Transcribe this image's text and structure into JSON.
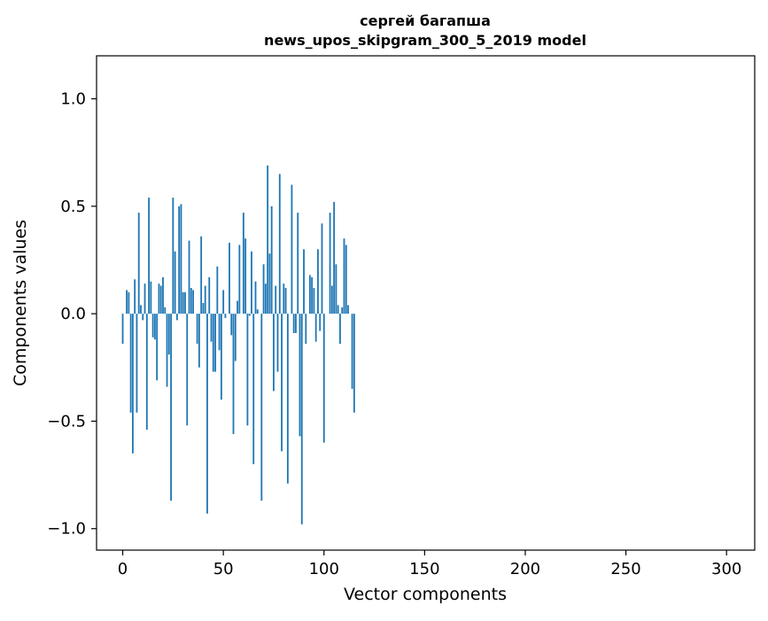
{
  "chart_data": {
    "type": "bar",
    "title_line1": "сергей багапша",
    "title_line2": "news_upos_skipgram_300_5_2019 model",
    "xlabel": "Vector components",
    "ylabel": "Components values",
    "xlim": [
      -13,
      314
    ],
    "ylim": [
      -1.1,
      1.2
    ],
    "xticks": [
      0,
      50,
      100,
      150,
      200,
      250,
      300
    ],
    "yticks": [
      -1.0,
      -0.5,
      0.0,
      0.5,
      1.0
    ],
    "ytick_labels": [
      "−1.0",
      "−0.5",
      "0.0",
      "0.5",
      "1.0"
    ],
    "grid": false,
    "bar_color": "#1f77b4",
    "values": [
      -0.14,
      0.0,
      0.11,
      0.1,
      -0.46,
      -0.65,
      0.16,
      -0.46,
      0.47,
      0.04,
      -0.03,
      0.14,
      -0.54,
      0.54,
      0.15,
      -0.11,
      -0.12,
      -0.31,
      0.14,
      0.13,
      0.17,
      0.03,
      -0.34,
      -0.19,
      -0.87,
      0.54,
      0.29,
      -0.03,
      0.5,
      0.51,
      0.1,
      0.1,
      -0.52,
      0.34,
      0.12,
      0.11,
      0.0,
      -0.14,
      -0.25,
      0.36,
      0.05,
      0.13,
      -0.93,
      0.17,
      -0.13,
      -0.27,
      -0.27,
      0.22,
      -0.17,
      -0.4,
      0.11,
      -0.02,
      0.0,
      0.33,
      -0.1,
      -0.56,
      -0.22,
      0.06,
      0.32,
      0.0,
      0.47,
      0.35,
      -0.52,
      -0.01,
      0.29,
      -0.7,
      0.15,
      0.02,
      0.0,
      -0.87,
      0.23,
      0.14,
      0.69,
      0.28,
      0.5,
      -0.36,
      0.13,
      -0.27,
      0.65,
      -0.64,
      0.14,
      0.12,
      -0.79,
      0.0,
      0.6,
      -0.09,
      -0.09,
      0.47,
      -0.57,
      -0.98,
      0.3,
      -0.14,
      0.0,
      0.18,
      0.17,
      0.12,
      -0.13,
      0.3,
      -0.08,
      0.42,
      -0.6,
      0.0,
      0.0,
      0.47,
      0.13,
      0.52,
      0.23,
      0.04,
      -0.14,
      0.03,
      0.35,
      0.32,
      0.04,
      0.0,
      -0.35,
      -0.46,
      0.0,
      0.0,
      0.0,
      0.0,
      0.0,
      0.0,
      0.0,
      0.0,
      0.0,
      0.0,
      0.0,
      0.0,
      0.0,
      0.0,
      0.0,
      0.0,
      0.0,
      0.0,
      0.0,
      0.0,
      0.0,
      0.0,
      0.0,
      0.0,
      0.0,
      0.0,
      0.0,
      0.0,
      0.0,
      0.0,
      0.0,
      0.0,
      0.0,
      0.0,
      0.0,
      0.0,
      0.0,
      0.0,
      0.0,
      0.0,
      0.0,
      0.0,
      0.0,
      0.0,
      0.0,
      0.0,
      0.0,
      0.0,
      0.0,
      0.0,
      0.0,
      0.0,
      0.0,
      0.0,
      0.0,
      0.0,
      0.0,
      0.0,
      0.0,
      0.0,
      0.0,
      0.0,
      0.0,
      0.0,
      0.0,
      0.0,
      0.0,
      0.0,
      0.0,
      0.0,
      0.0,
      0.0,
      0.0,
      0.0,
      0.0,
      0.0,
      0.0,
      0.0,
      0.0,
      0.0,
      0.0,
      0.0,
      0.0,
      0.0,
      0.0,
      0.0,
      0.0,
      0.0,
      0.0,
      0.0,
      0.0,
      0.0,
      0.0,
      0.0,
      0.0,
      0.0,
      0.0,
      0.0,
      0.0,
      0.0,
      0.0,
      0.0,
      0.0,
      0.0,
      0.0,
      0.0,
      0.0,
      0.0,
      0.0,
      0.0,
      0.0,
      0.0,
      0.0,
      0.0,
      0.0,
      0.0,
      0.0,
      0.0,
      0.0,
      0.0,
      0.0,
      0.0,
      0.0,
      0.0,
      0.0,
      0.0,
      0.0,
      0.0,
      0.0,
      0.0,
      0.0,
      0.0,
      0.0,
      0.0,
      0.0,
      0.0,
      0.0,
      0.0,
      0.0,
      0.0,
      0.0,
      0.0,
      0.0,
      0.0,
      0.0,
      0.0,
      0.0,
      0.0,
      0.0,
      0.0,
      0.0,
      0.0,
      0.0,
      0.0,
      0.0,
      0.0,
      0.0,
      0.0,
      0.0,
      0.0,
      0.0,
      0.0,
      0.0,
      0.0,
      0.0,
      0.0,
      0.0,
      0.0,
      0.0,
      0.0,
      0.0,
      0.0,
      0.0,
      0.0,
      0.0,
      0.0,
      0.0,
      0.0,
      0.0,
      0.0,
      0.0,
      0.0,
      0.0,
      0.0
    ]
  }
}
